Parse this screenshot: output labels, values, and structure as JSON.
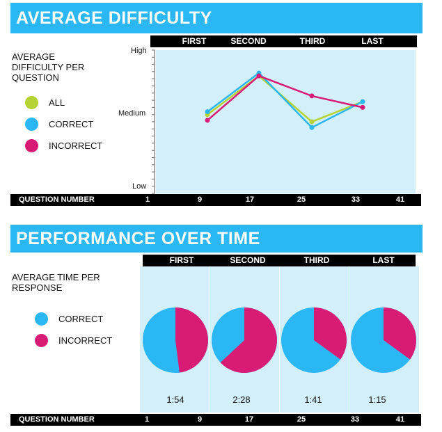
{
  "difficulty": {
    "title": "AVERAGE DIFFICULTY",
    "subtitle_lines": [
      "AVERAGE",
      "DIFFICULTY PER",
      "QUESTION"
    ],
    "phases": [
      "FIRST",
      "SECOND",
      "THIRD",
      "LAST"
    ],
    "legend": [
      {
        "label": "ALL",
        "color": "#b5d334"
      },
      {
        "label": "CORRECT",
        "color": "#2bb7f3"
      },
      {
        "label": "INCORRECT",
        "color": "#d81b75"
      }
    ],
    "y_labels": {
      "high": "High",
      "medium": "Medium",
      "low": "Low"
    },
    "xaxis": {
      "label": "QUESTION NUMBER",
      "ticks": [
        "1",
        "9",
        "17",
        "25",
        "33",
        "41"
      ]
    }
  },
  "performance": {
    "title": "PERFORMANCE OVER TIME",
    "subtitle_lines": [
      "AVERAGE TIME PER",
      "RESPONSE"
    ],
    "phases": [
      "FIRST",
      "SECOND",
      "THIRD",
      "LAST"
    ],
    "legend": [
      {
        "label": "CORRECT",
        "color": "#2bb7f3"
      },
      {
        "label": "INCORRECT",
        "color": "#d81b75"
      }
    ],
    "times": [
      "1:54",
      "2:28",
      "1:41",
      "1:15"
    ],
    "xaxis": {
      "label": "QUESTION NUMBER",
      "ticks": [
        "1",
        "9",
        "17",
        "25",
        "33",
        "41"
      ]
    }
  },
  "chart_data": [
    {
      "type": "line",
      "title": "AVERAGE DIFFICULTY",
      "xlabel": "QUESTION NUMBER",
      "ylabel": "",
      "categories": [
        "FIRST",
        "SECOND",
        "THIRD",
        "LAST"
      ],
      "y_scale_labels": [
        "Low",
        "Medium",
        "High"
      ],
      "ylim": [
        0,
        1
      ],
      "grid": false,
      "legend_position": "left",
      "series": [
        {
          "name": "ALL",
          "color": "#b5d334",
          "values": [
            0.55,
            0.82,
            0.5,
            0.64
          ]
        },
        {
          "name": "CORRECT",
          "color": "#2bb7f3",
          "values": [
            0.57,
            0.84,
            0.46,
            0.64
          ]
        },
        {
          "name": "INCORRECT",
          "color": "#d81b75",
          "values": [
            0.51,
            0.82,
            0.68,
            0.6
          ]
        }
      ]
    },
    {
      "type": "pie",
      "title": "PERFORMANCE OVER TIME",
      "xlabel": "QUESTION NUMBER",
      "categories": [
        "FIRST",
        "SECOND",
        "THIRD",
        "LAST"
      ],
      "slices": [
        "CORRECT",
        "INCORRECT"
      ],
      "incorrect_fraction": [
        0.48,
        0.63,
        0.35,
        0.35
      ],
      "correct_fraction": [
        0.52,
        0.37,
        0.65,
        0.65
      ],
      "labels": [
        "1:54",
        "2:28",
        "1:41",
        "1:15"
      ]
    }
  ]
}
